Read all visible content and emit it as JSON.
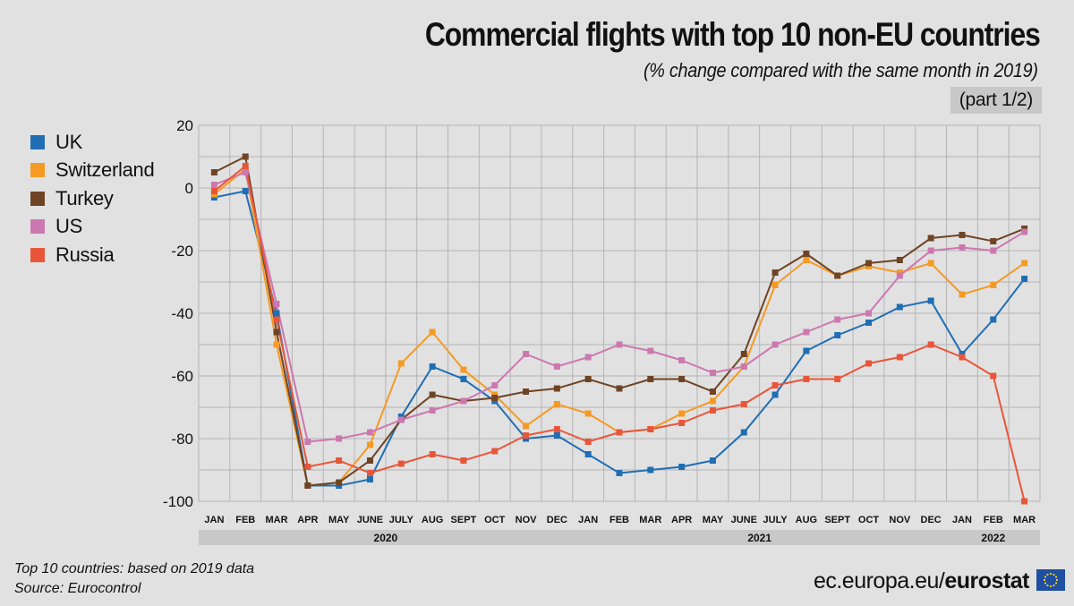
{
  "header": {
    "title": "Commercial flights with top 10 non-EU countries",
    "subtitle": "(% change compared with the same month in 2019)",
    "part_label": "(part 1/2)"
  },
  "footer": {
    "note_line1": "Top 10 countries: based on 2019 data",
    "note_line2": "Source: Eurocontrol",
    "brand_prefix": "ec.europa.eu/",
    "brand_name": "eurostat"
  },
  "chart_data": {
    "type": "line",
    "categories": [
      "JAN",
      "FEB",
      "MAR",
      "APR",
      "MAY",
      "JUNE",
      "JULY",
      "AUG",
      "SEPT",
      "OCT",
      "NOV",
      "DEC",
      "JAN",
      "FEB",
      "MAR",
      "APR",
      "MAY",
      "JUNE",
      "JULY",
      "AUG",
      "SEPT",
      "OCT",
      "NOV",
      "DEC",
      "JAN",
      "FEB",
      "MAR"
    ],
    "year_groups": [
      {
        "label": "2020",
        "start": 0,
        "end": 11
      },
      {
        "label": "2021",
        "start": 12,
        "end": 23
      },
      {
        "label": "2022",
        "start": 24,
        "end": 26
      }
    ],
    "ylim": [
      -100,
      20
    ],
    "yticks": [
      20,
      0,
      -20,
      -40,
      -60,
      -80,
      -100
    ],
    "grid": true,
    "legend_position": "top-left",
    "series": [
      {
        "name": "UK",
        "color": "#1f6eb4",
        "values": [
          -3,
          -1,
          -40,
          -95,
          -95,
          -93,
          -73,
          -57,
          -61,
          -68,
          -80,
          -79,
          -85,
          -91,
          -90,
          -89,
          -87,
          -78,
          -66,
          -52,
          -47,
          -43,
          -38,
          -36,
          -53,
          -42,
          -29
        ]
      },
      {
        "name": "Switzerland",
        "color": "#f59a23",
        "values": [
          -2,
          6,
          -50,
          -95,
          -94,
          -82,
          -56,
          -46,
          -58,
          -66,
          -76,
          -69,
          -72,
          -78,
          -77,
          -72,
          -68,
          -57,
          -31,
          -23,
          -28,
          -25,
          -27,
          -24,
          -34,
          -31,
          -24
        ]
      },
      {
        "name": "Turkey",
        "color": "#6e4424",
        "values": [
          5,
          10,
          -46,
          -95,
          -94,
          -87,
          -74,
          -66,
          -68,
          -67,
          -65,
          -64,
          -61,
          -64,
          -61,
          -61,
          -65,
          -53,
          -27,
          -21,
          -28,
          -24,
          -23,
          -16,
          -15,
          -17,
          -13
        ]
      },
      {
        "name": "US",
        "color": "#cc78b0",
        "values": [
          1,
          5,
          -37,
          -81,
          -80,
          -78,
          -74,
          -71,
          -68,
          -63,
          -53,
          -57,
          -54,
          -50,
          -52,
          -55,
          -59,
          -57,
          -50,
          -46,
          -42,
          -40,
          -28,
          -20,
          -19,
          -20,
          -14
        ]
      },
      {
        "name": "Russia",
        "color": "#e8563a",
        "values": [
          -1,
          7,
          -42,
          -89,
          -87,
          -91,
          -88,
          -85,
          -87,
          -84,
          -79,
          -77,
          -81,
          -78,
          -77,
          -75,
          -71,
          -69,
          -63,
          -61,
          -61,
          -56,
          -54,
          -50,
          -54,
          -60,
          -100
        ]
      }
    ]
  }
}
